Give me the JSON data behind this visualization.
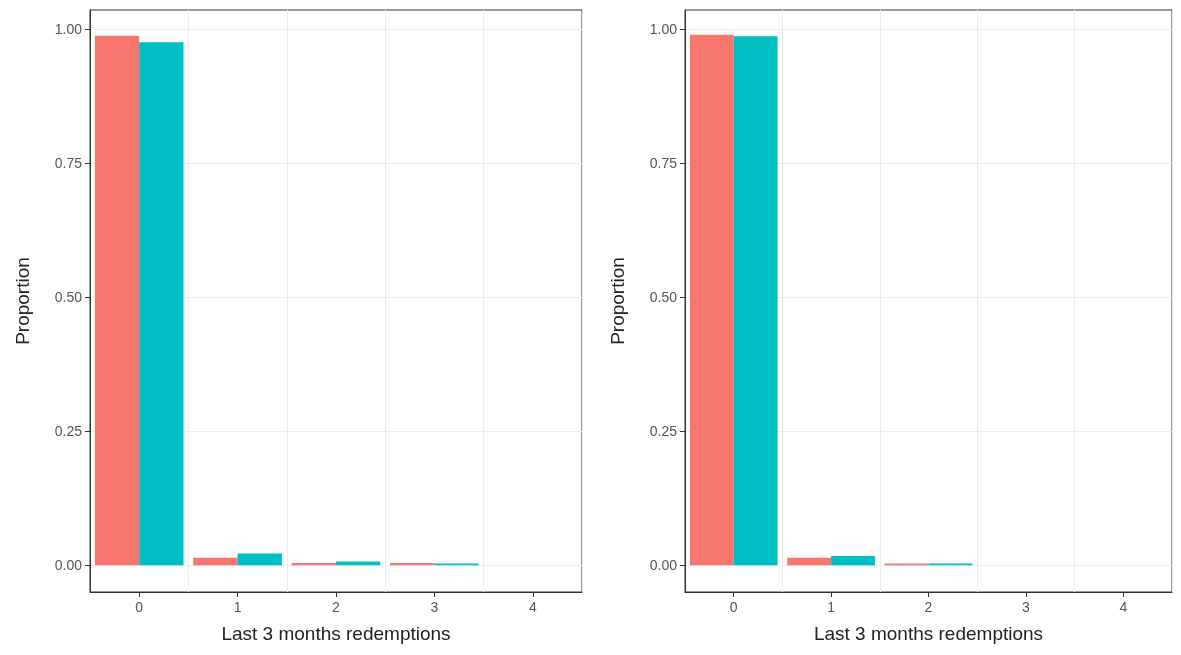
{
  "chart_data": [
    {
      "type": "bar",
      "xlabel": "Last 3 months redemptions",
      "ylabel": "Proportion",
      "categories": [
        "0",
        "1",
        "2",
        "3",
        "4"
      ],
      "series": [
        {
          "color": "#f8766d",
          "values": [
            0.987,
            0.014,
            0.004,
            0.004,
            null
          ]
        },
        {
          "color": "#00bfc4",
          "values": [
            0.975,
            0.022,
            0.007,
            0.003,
            null
          ]
        }
      ],
      "ylim": [
        -0.05,
        1.035
      ],
      "yticks": [
        {
          "value": 0,
          "label": "0.00"
        },
        {
          "value": 0.25,
          "label": "0.25"
        },
        {
          "value": 0.5,
          "label": "0.50"
        },
        {
          "value": 0.75,
          "label": "0.75"
        },
        {
          "value": 1,
          "label": "1.00"
        }
      ],
      "grid": true
    },
    {
      "type": "bar",
      "xlabel": "Last 3 months redemptions",
      "ylabel": "Proportion",
      "categories": [
        "0",
        "1",
        "2",
        "3",
        "4"
      ],
      "series": [
        {
          "color": "#f8766d",
          "values": [
            0.989,
            0.014,
            0.003,
            null,
            null
          ]
        },
        {
          "color": "#00bfc4",
          "values": [
            0.986,
            0.017,
            0.003,
            null,
            null
          ]
        }
      ],
      "ylim": [
        -0.05,
        1.035
      ],
      "yticks": [
        {
          "value": 0,
          "label": "0.00"
        },
        {
          "value": 0.25,
          "label": "0.25"
        },
        {
          "value": 0.5,
          "label": "0.50"
        },
        {
          "value": 0.75,
          "label": "0.75"
        },
        {
          "value": 1,
          "label": "1.00"
        }
      ],
      "grid": true
    }
  ]
}
